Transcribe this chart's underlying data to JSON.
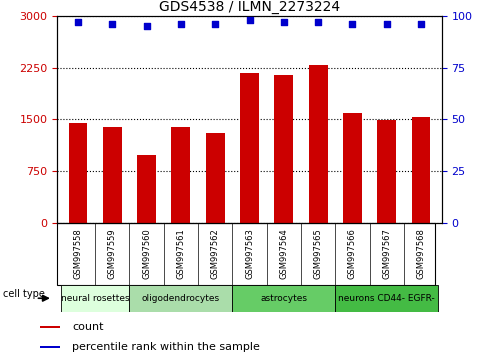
{
  "title": "GDS4538 / ILMN_2273224",
  "samples": [
    "GSM997558",
    "GSM997559",
    "GSM997560",
    "GSM997561",
    "GSM997562",
    "GSM997563",
    "GSM997564",
    "GSM997565",
    "GSM997566",
    "GSM997567",
    "GSM997568"
  ],
  "counts": [
    1450,
    1390,
    980,
    1390,
    1310,
    2170,
    2150,
    2290,
    1600,
    1490,
    1530
  ],
  "percentile": [
    97,
    96,
    95,
    96,
    96,
    98,
    97,
    97,
    96,
    96,
    96
  ],
  "ylim_left": [
    0,
    3000
  ],
  "ylim_right": [
    0,
    100
  ],
  "yticks_left": [
    0,
    750,
    1500,
    2250,
    3000
  ],
  "yticks_right": [
    0,
    25,
    50,
    75,
    100
  ],
  "bar_color": "#cc0000",
  "dot_color": "#0000cc",
  "cell_types": [
    {
      "label": "neural rosettes",
      "start": 0,
      "end": 2,
      "color": "#ddffdd"
    },
    {
      "label": "oligodendrocytes",
      "start": 2,
      "end": 5,
      "color": "#aaddaa"
    },
    {
      "label": "astrocytes",
      "start": 5,
      "end": 8,
      "color": "#66cc66"
    },
    {
      "label": "neurons CD44- EGFR-",
      "start": 8,
      "end": 11,
      "color": "#44bb44"
    }
  ],
  "cell_type_label": "cell type",
  "legend_count": "count",
  "legend_percentile": "percentile rank within the sample",
  "background_color": "#ffffff",
  "sample_bg_color": "#cccccc",
  "tick_label_color_left": "#cc0000",
  "tick_label_color_right": "#0000cc"
}
